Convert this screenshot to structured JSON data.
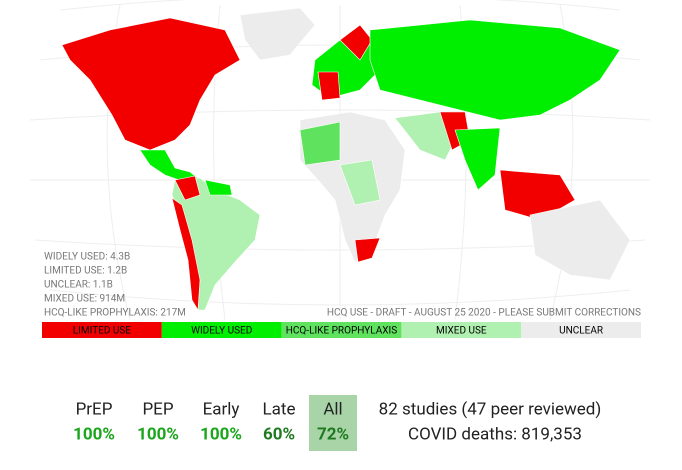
{
  "map": {
    "stats": [
      "WIDELY USED: 4.3B",
      "LIMITED USE: 1.2B",
      "UNCLEAR: 1.1B",
      "MIXED USE: 914M",
      "HCQ-LIKE PROPHYLAXIS: 217M"
    ],
    "caption": "HCQ USE - DRAFT - AUGUST 25 2020 - PLEASE SUBMIT CORRECTIONS"
  },
  "legend": [
    {
      "label": "LIMITED USE",
      "color": "#f20000"
    },
    {
      "label": "WIDELY USED",
      "color": "#00ee00"
    },
    {
      "label": "HCQ-LIKE PROPHYLAXIS",
      "color": "#5fe35f"
    },
    {
      "label": "MIXED USE",
      "color": "#b0f0b0"
    },
    {
      "label": "UNCLEAR",
      "color": "#ececec"
    }
  ],
  "summary": {
    "columns": [
      {
        "label": "PrEP",
        "value": "100%"
      },
      {
        "label": "PEP",
        "value": "100%"
      },
      {
        "label": "Early",
        "value": "100%"
      },
      {
        "label": "Late",
        "value": "60%"
      },
      {
        "label": "All",
        "value": "72%"
      }
    ],
    "studies": "82 studies (47 peer reviewed)",
    "deaths": "COVID deaths: 819,353"
  }
}
